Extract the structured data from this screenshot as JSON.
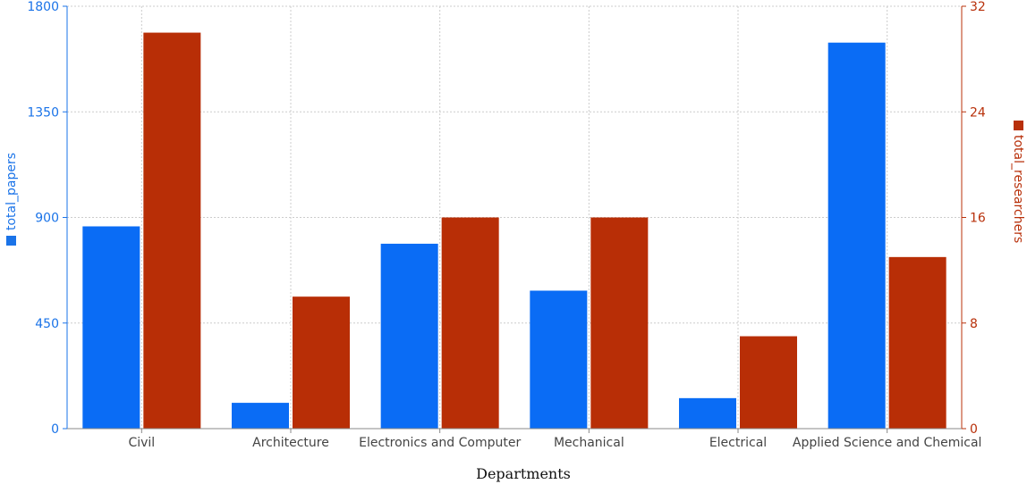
{
  "chart_data": {
    "type": "bar",
    "categories": [
      "Civil",
      "Architecture",
      "Electronics and Computer",
      "Mechanical",
      "Electrical",
      "Applied Science and Chemical"
    ],
    "series": [
      {
        "name": "total_papers",
        "axis": "left",
        "color": "#0a6cf5",
        "values": [
          862,
          110,
          788,
          588,
          130,
          1645
        ]
      },
      {
        "name": "total_researchers",
        "axis": "right",
        "color": "#b82e06",
        "values": [
          30,
          10,
          16,
          16,
          7,
          13
        ]
      }
    ],
    "xlabel": "Departments",
    "y_left": {
      "label": "total_papers",
      "ylim": [
        0,
        1800
      ],
      "ticks": [
        0,
        450,
        900,
        1350,
        1800
      ],
      "color": "#1a73e8"
    },
    "y_right": {
      "label": "total_researchers",
      "ylim": [
        0,
        32
      ],
      "ticks": [
        0,
        8,
        16,
        24,
        32
      ],
      "color": "#b8300a"
    },
    "grid": true
  }
}
